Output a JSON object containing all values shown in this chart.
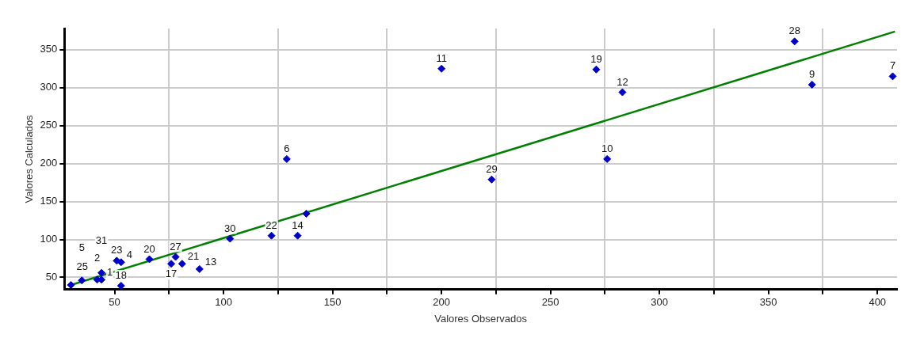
{
  "chart_data": {
    "type": "scatter",
    "xlabel": "Valores Observados",
    "ylabel": "Valores Calculados",
    "xlim": [
      27,
      409
    ],
    "ylim": [
      34,
      378
    ],
    "xticks": [
      50,
      {
        "value": 75,
        "label": null
      },
      100,
      {
        "value": 125,
        "label": null
      },
      150,
      {
        "value": 175,
        "label": null
      },
      200,
      {
        "value": 225,
        "label": null
      },
      250,
      {
        "value": 275,
        "label": null
      },
      300,
      {
        "value": 325,
        "label": null
      },
      350,
      {
        "value": 375,
        "label": null
      },
      400
    ],
    "yticks": [
      50,
      100,
      150,
      200,
      250,
      300,
      350
    ],
    "grid": true,
    "legend": false,
    "marker": "diamond",
    "series": [
      {
        "color": "#0000cc",
        "x": [
          30,
          35,
          42,
          44,
          44,
          51,
          53,
          53,
          66,
          76,
          78,
          81,
          89,
          103,
          122,
          134,
          138,
          129,
          223,
          200,
          271,
          283,
          276,
          362,
          370,
          407
        ],
        "values": [
          40,
          46,
          47,
          56,
          47,
          72,
          70,
          39,
          74,
          68,
          77,
          68,
          61,
          101,
          105,
          105,
          134,
          206,
          179,
          325,
          324,
          294,
          206,
          361,
          304,
          315
        ]
      },
      {
        "type": "line",
        "color": "#008000",
        "marker": "none",
        "x": [
          30,
          408
        ],
        "values": [
          40,
          374
        ]
      }
    ],
    "annotations": [
      {
        "text": "25",
        "x": 30,
        "y": 40
      },
      {
        "text": "5",
        "x": 35,
        "y": 46
      },
      {
        "text": "2",
        "x": 42,
        "y": 47
      },
      {
        "text": "31",
        "x": 44,
        "y": 56
      },
      {
        "text": "1",
        "x": 44,
        "y": 47
      },
      {
        "text": "23",
        "x": 51,
        "y": 72
      },
      {
        "text": "4",
        "x": 53,
        "y": 70
      },
      {
        "text": "18",
        "x": 53,
        "y": 39
      },
      {
        "text": "20",
        "x": 66,
        "y": 74
      },
      {
        "text": "17",
        "x": 76,
        "y": 68
      },
      {
        "text": "27",
        "x": 78,
        "y": 77
      },
      {
        "text": "21",
        "x": 81,
        "y": 68
      },
      {
        "text": "13",
        "x": 89,
        "y": 61
      },
      {
        "text": "30",
        "x": 103,
        "y": 101
      },
      {
        "text": "22",
        "x": 122,
        "y": 105
      },
      {
        "text": "14",
        "x": 134,
        "y": 105
      },
      {
        "text": "6",
        "x": 129,
        "y": 206
      },
      {
        "text": "29",
        "x": 223,
        "y": 179
      },
      {
        "text": "11",
        "x": 200,
        "y": 325
      },
      {
        "text": "19",
        "x": 271,
        "y": 324
      },
      {
        "text": "12",
        "x": 283,
        "y": 294
      },
      {
        "text": "10",
        "x": 276,
        "y": 206
      },
      {
        "text": "28",
        "x": 362,
        "y": 361
      },
      {
        "text": "9",
        "x": 370,
        "y": 304
      },
      {
        "text": "7",
        "x": 407,
        "y": 315
      }
    ]
  }
}
